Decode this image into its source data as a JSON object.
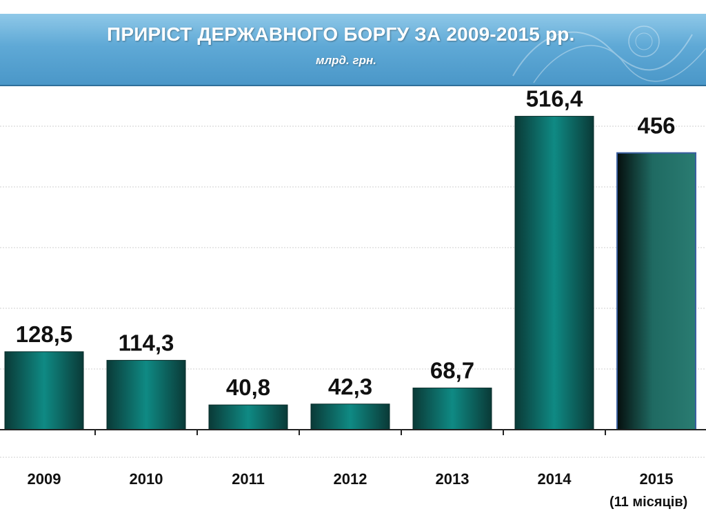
{
  "header": {
    "title": "ПРИРІСТ ДЕРЖАВНОГО БОРГУ ЗА 2009-2015 рр.",
    "subtitle": "млрд. грн."
  },
  "chart_data": {
    "type": "bar",
    "title": "ПРИРІСТ ДЕРЖАВНОГО БОРГУ ЗА 2009-2015 рр.",
    "subtitle": "млрд. грн.",
    "categories": [
      "2009",
      "2010",
      "2011",
      "2012",
      "2013",
      "2014",
      "2015"
    ],
    "values": [
      128.5,
      114.3,
      40.8,
      42.3,
      68.7,
      516.4,
      456
    ],
    "data_labels": [
      "128,5",
      "114,3",
      "40,8",
      "42,3",
      "68,7",
      "516,4",
      "456"
    ],
    "xlabel": "",
    "ylabel": "",
    "ylim": [
      0,
      600
    ],
    "grid": true,
    "legend": "none",
    "footnote": "(11 місяців)",
    "colors": {
      "bar_dark": "#0a3a37",
      "bar_mid": "#0f8a84",
      "bar_last_dark": "#050e0d",
      "bar_last_light": "#2a7c72",
      "bar_last_border": "#3a5fa0",
      "grid": "#cfcfcf",
      "axis": "#222222"
    }
  }
}
